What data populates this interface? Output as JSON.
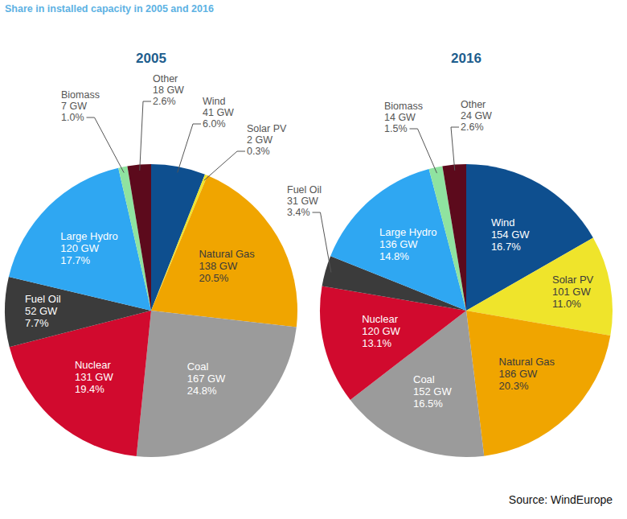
{
  "title": "Share in installed capacity in 2005 and 2016",
  "source": "Source: WindEurope",
  "chart_data": [
    {
      "type": "pie",
      "title": "2005",
      "categories": [
        "Wind",
        "Solar PV",
        "Natural Gas",
        "Coal",
        "Nuclear",
        "Fuel Oil",
        "Large Hydro",
        "Biomass",
        "Other"
      ],
      "values": [
        6.0,
        0.3,
        20.5,
        24.8,
        19.4,
        7.7,
        17.7,
        1.0,
        2.6
      ],
      "value_labels": [
        "6.0%",
        "0.3%",
        "20.5%",
        "24.8%",
        "19.4%",
        "7.7%",
        "17.7%",
        "1.0%",
        "2.6%"
      ],
      "capacity_labels": [
        "41 GW",
        "2 GW",
        "138 GW",
        "167 GW",
        "131 GW",
        "52 GW",
        "120 GW",
        "7 GW",
        "18 GW"
      ],
      "colors": [
        "#0e4f8f",
        "#efe42b",
        "#f0a500",
        "#9b9b9b",
        "#d10a2e",
        "#3b3b3b",
        "#2fa7f2",
        "#8fe3a0",
        "#5c0a1c"
      ],
      "data_labels": true
    },
    {
      "type": "pie",
      "title": "2016",
      "categories": [
        "Wind",
        "Solar PV",
        "Natural Gas",
        "Coal",
        "Nuclear",
        "Fuel Oil",
        "Large Hydro",
        "Biomass",
        "Other"
      ],
      "values": [
        16.7,
        11.0,
        20.3,
        16.5,
        13.1,
        3.4,
        14.8,
        1.5,
        2.6
      ],
      "value_labels": [
        "16.7%",
        "11.0%",
        "20.3%",
        "16.5%",
        "13.1%",
        "3.4%",
        "14.8%",
        "1.5%",
        "2.6%"
      ],
      "capacity_labels": [
        "154 GW",
        "101 GW",
        "186 GW",
        "152 GW",
        "120 GW",
        "31 GW",
        "136 GW",
        "14 GW",
        "24 GW"
      ],
      "colors": [
        "#0e4f8f",
        "#efe42b",
        "#f0a500",
        "#9b9b9b",
        "#d10a2e",
        "#3b3b3b",
        "#2fa7f2",
        "#8fe3a0",
        "#5c0a1c"
      ],
      "data_labels": true
    }
  ]
}
